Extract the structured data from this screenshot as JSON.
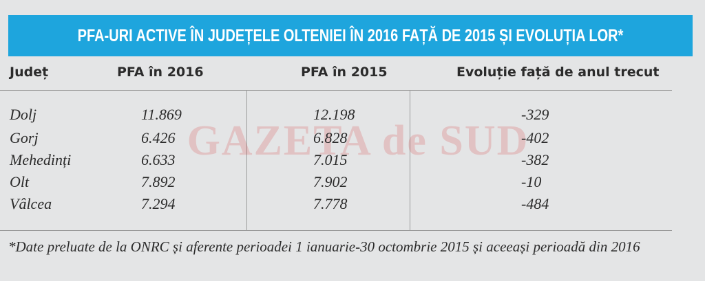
{
  "header": {
    "title": "PFA-URI ACTIVE ÎN JUDEȚELE OLTENIEI ÎN 2016 FAȚĂ DE 2015 ȘI EVOLUȚIA LOR*"
  },
  "table": {
    "columns": [
      "Județ",
      "PFA în 2016",
      "PFA în 2015",
      "Evoluție față de anul trecut"
    ],
    "rows": [
      [
        "Dolj",
        "11.869",
        "12.198",
        "-329"
      ],
      [
        "Gorj",
        "6.426",
        "6.828",
        "-402"
      ],
      [
        "Mehedinți",
        "6.633",
        "7.015",
        "-382"
      ],
      [
        "Olt",
        "7.892",
        "7.902",
        "-10"
      ],
      [
        "Vâlcea",
        "7.294",
        "7.778",
        "-484"
      ]
    ]
  },
  "watermark": "GAZETA de SUD",
  "footnote": "*Date preluate de la ONRC și aferente perioadei 1 ianuarie-30 octombrie 2015 și aceeași perioadă din 2016"
}
